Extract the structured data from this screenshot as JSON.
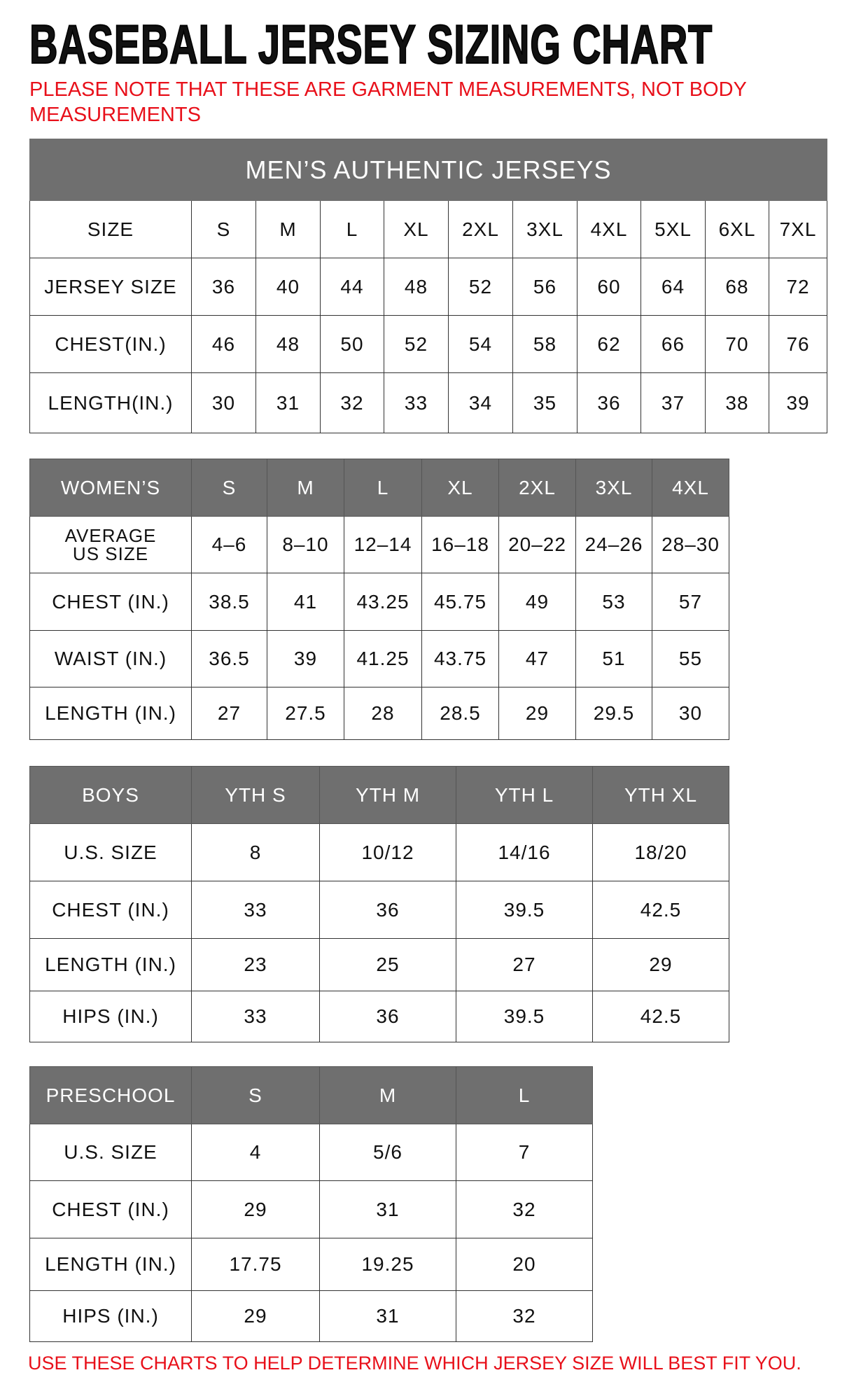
{
  "title": "BASEBALL JERSEY SIZING CHART",
  "note_line1": "PLEASE NOTE THAT THESE ARE GARMENT MEASUREMENTS, NOT BODY",
  "note_line2": "MEASUREMENTS",
  "footer": "USE THESE CHARTS TO HELP DETERMINE WHICH JERSEY SIZE WILL BEST FIT YOU.",
  "colors": {
    "header_bg": "#6f6f6f",
    "note_red": "#e8101a"
  },
  "tables": [
    {
      "id": "mens",
      "banner": "MEN’S AUTHENTIC JERSEYS",
      "header": [
        "SIZE",
        "S",
        "M",
        "L",
        "XL",
        "2XL",
        "3XL",
        "4XL",
        "5XL",
        "6XL",
        "7XL"
      ],
      "header_dark": false,
      "rows": [
        [
          "JERSEY SIZE",
          "36",
          "40",
          "44",
          "48",
          "52",
          "56",
          "60",
          "64",
          "68",
          "72"
        ],
        [
          "CHEST(IN.)",
          "46",
          "48",
          "50",
          "52",
          "54",
          "58",
          "62",
          "66",
          "70",
          "76"
        ],
        [
          "LENGTH(IN.)",
          "30",
          "31",
          "32",
          "33",
          "34",
          "35",
          "36",
          "37",
          "38",
          "39"
        ]
      ]
    },
    {
      "id": "womens",
      "header": [
        "WOMEN’S",
        "S",
        "M",
        "L",
        "XL",
        "2XL",
        "3XL",
        "4XL"
      ],
      "header_dark": true,
      "rows": [
        [
          "AVERAGE US SIZE",
          "4–6",
          "8–10",
          "12–14",
          "16–18",
          "20–22",
          "24–26",
          "28–30"
        ],
        [
          "CHEST (IN.)",
          "38.5",
          "41",
          "43.25",
          "45.75",
          "49",
          "53",
          "57"
        ],
        [
          "WAIST (IN.)",
          "36.5",
          "39",
          "41.25",
          "43.75",
          "47",
          "51",
          "55"
        ],
        [
          "LENGTH (IN.)",
          "27",
          "27.5",
          "28",
          "28.5",
          "29",
          "29.5",
          "30"
        ]
      ]
    },
    {
      "id": "boys",
      "header": [
        "BOYS",
        "YTH S",
        "YTH M",
        "YTH L",
        "YTH XL"
      ],
      "header_dark": true,
      "rows": [
        [
          "U.S. SIZE",
          "8",
          "10/12",
          "14/16",
          "18/20"
        ],
        [
          "CHEST (IN.)",
          "33",
          "36",
          "39.5",
          "42.5"
        ],
        [
          "LENGTH (IN.)",
          "23",
          "25",
          "27",
          "29"
        ],
        [
          "HIPS (IN.)",
          "33",
          "36",
          "39.5",
          "42.5"
        ]
      ]
    },
    {
      "id": "preschool",
      "header": [
        "PRESCHOOL",
        "S",
        "M",
        "L"
      ],
      "header_dark": true,
      "rows": [
        [
          "U.S. SIZE",
          "4",
          "5/6",
          "7"
        ],
        [
          "CHEST (IN.)",
          "29",
          "31",
          "32"
        ],
        [
          "LENGTH (IN.)",
          "17.75",
          "19.25",
          "20"
        ],
        [
          "HIPS (IN.)",
          "29",
          "31",
          "32"
        ]
      ]
    }
  ]
}
